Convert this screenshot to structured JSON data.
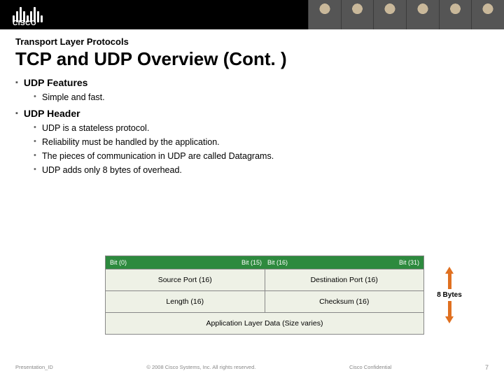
{
  "header": {
    "logo_text": "CISCO"
  },
  "slide": {
    "subtitle": "Transport Layer Protocols",
    "title": "TCP and UDP Overview (Cont. )",
    "sections": [
      {
        "heading": "UDP Features",
        "bullets": [
          "Simple and fast."
        ]
      },
      {
        "heading": "UDP Header",
        "bullets": [
          "UDP is a stateless protocol.",
          "Reliability must be handled by the application.",
          "The pieces of communication in UDP are called Datagrams.",
          "UDP adds only 8 bytes of overhead."
        ]
      }
    ]
  },
  "diagram": {
    "bit_labels": {
      "left": "Bit (0)",
      "mid_left": "Bit (15)",
      "mid_right": "Bit (16)",
      "right": "Bit (31)"
    },
    "rows": [
      [
        "Source Port (16)",
        "Destination Port (16)"
      ],
      [
        "Length (16)",
        "Checksum (16)"
      ]
    ],
    "full_row": "Application Layer Data (Size varies)",
    "brace_label": "8 Bytes",
    "colors": {
      "header_bg": "#2d8a3e",
      "cell_bg": "#eef1e6",
      "arrow": "#e07020"
    }
  },
  "footer": {
    "left": "Presentation_ID",
    "center": "© 2008 Cisco Systems, Inc. All rights reserved.",
    "right": "Cisco Confidential",
    "page": "7"
  }
}
